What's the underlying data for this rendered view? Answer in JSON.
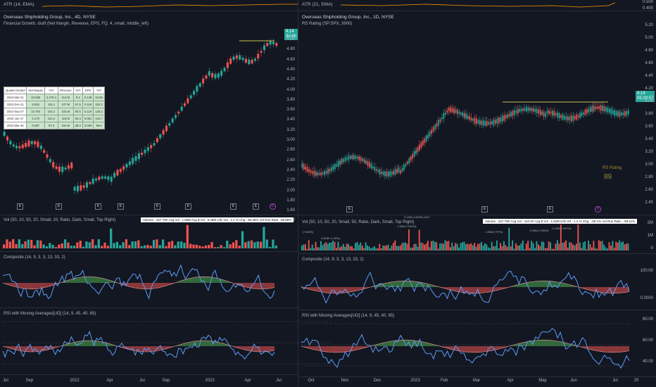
{
  "left": {
    "atr_title": "ATR (14, EMA)",
    "title": "Overseas Shipholding Group, Inc., 4D, NYSE",
    "financial_title": "Financial Growth, draft (Net Margin, Revenue, EPS, FQ, 4, small, middle_left)",
    "price_tag": "4.14",
    "price_tag_sub": "3d 6h",
    "price_ticks": [
      "5.00",
      "4.80",
      "4.60",
      "4.40",
      "4.20",
      "4.00",
      "3.80",
      "3.60",
      "3.40",
      "3.20",
      "3.00",
      "2.80",
      "2.60",
      "2.40",
      "2.20",
      "2.00",
      "1.80",
      "1.60",
      "1.40"
    ],
    "fin_table": {
      "headers": [
        "Quarter Ended",
        "Net Margin",
        "YoY",
        "Revenue",
        "YoY",
        "EPS",
        "YoY"
      ],
      "rows": [
        [
          "2023-Mar-31",
          "20.668",
          "2,279.4",
          "114.M",
          "9.4",
          "0.148",
          "24.89"
        ],
        [
          "2022-Dec-31",
          "8.283",
          "115.1",
          "107.M",
          "57.5",
          "0.119",
          "102.2"
        ],
        [
          "2022-Sep-27",
          "10.764",
          "102.2",
          "103.M",
          "93.5",
          "0.119",
          "145.2"
        ],
        [
          "2022-Jun-17",
          "2.170",
          "124.2",
          "118.M",
          "53.3",
          "0.061",
          "134.7"
        ],
        [
          "2022-Mar-30",
          "0.487",
          "97.3",
          "104.M",
          "38.3",
          "0.000",
          "96.6"
        ]
      ]
    },
    "vol_title": "Vol (50, 10, 50, 20, Small, 20, Ratio, Dark, Small, Top Right)",
    "vol_legend": "Volume : 167.79K   Avg Vol : 1.59M   Avg $ Vol : 5.28M   U/D Vol : 1.2   % Chg : 89.46%   Vol Run Rate : 89.88%",
    "composite_title": "Composite (14, 9, 3, 3, 13, 33, 2)",
    "rsi_title": "RSI with Moving Averages[UO] (14, 9, 45, 40, 65)",
    "x_labels": [
      "Jul",
      "Sep",
      "2022",
      "Apr",
      "Jul",
      "Sep",
      "2023",
      "Apr",
      "Jul"
    ]
  },
  "right": {
    "atr_title": "ATR (21, EMA)",
    "title": "Overseas Shipholding Group, Inc., 1D, NYSE",
    "rs_title": "RS Rating (SP:SPX, 3900)",
    "price_tag": "4.14",
    "price_tag_sub": "05:29:57",
    "atr_ticks": [
      "0.500",
      "0.400"
    ],
    "price_ticks": [
      "5.20",
      "5.00",
      "4.80",
      "4.60",
      "4.40",
      "4.20",
      "4.00",
      "3.80",
      "3.60",
      "3.40",
      "3.20",
      "3.00",
      "2.80",
      "2.60",
      "2.40"
    ],
    "rs_label": "RS Rating",
    "rs_value": "89",
    "vol_title": "Vol (50, 10, 50, 20, Small, 50, Ratio, Dark, Small, Top Right)",
    "vol_legend": "Volume : 167.79K   Avg Vol : 410.2K   Avg $ Vol : 1.52M   U/D Vol : 1.2   % Chg : -59.1%   Vol Run Rate : -59.11%",
    "vol_ticks": [
      "2M",
      "1M",
      "0"
    ],
    "vol_annots": [
      "2.13M (+429%) HVY",
      "1.46M (+232%)",
      "0.616K (+40%)",
      "1.05M (+97%)",
      "1.26M (+195%)",
      "1.19M (+197%)",
      "(+160%)"
    ],
    "composite_title": "Composite (14, 9, 3, 3, 13, 33, 2)",
    "composite_ticks": [
      "100.00",
      "0.0000"
    ],
    "rsi_title": "RSI with Moving Averages[UO] (14, 9, 45, 40, 65)",
    "rsi_ticks": [
      "80.00",
      "60.00",
      "40.00"
    ],
    "x_labels": [
      "Oct",
      "Nov",
      "Dec",
      "2023",
      "Feb",
      "Mar",
      "Apr",
      "May",
      "Jun",
      "Jul",
      "20"
    ]
  },
  "colors": {
    "up": "#26a69a",
    "down": "#ef5350",
    "price_line": "#c8c050",
    "indicator": "#5b9cf6",
    "atr": "#ff9800"
  }
}
